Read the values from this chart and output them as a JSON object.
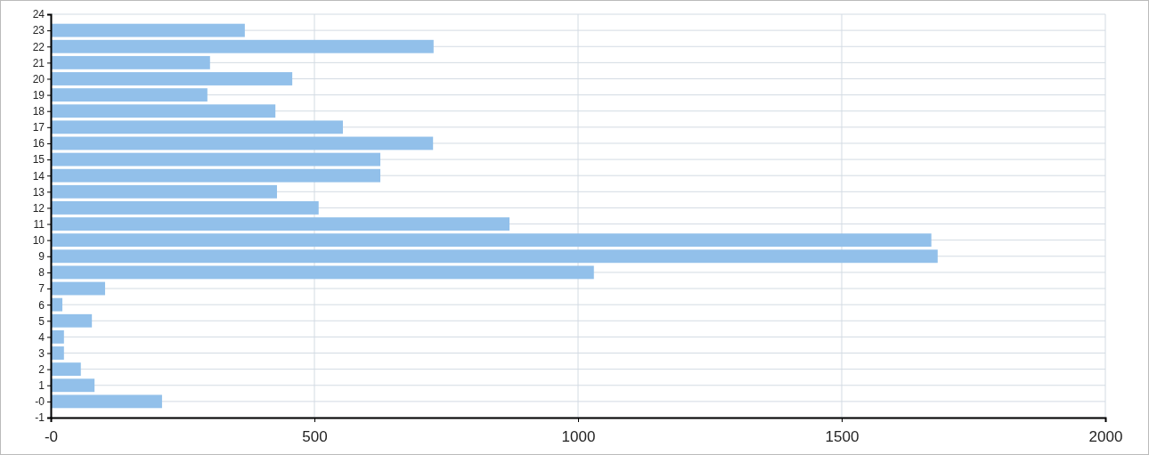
{
  "chart_data": {
    "type": "bar",
    "orientation": "horizontal",
    "categories": [
      "24",
      "23",
      "22",
      "21",
      "20",
      "19",
      "18",
      "17",
      "16",
      "15",
      "14",
      "13",
      "12",
      "11",
      "10",
      "9",
      "8",
      "7",
      "6",
      "5",
      "4",
      "3",
      "2",
      "1",
      "-0",
      "-1"
    ],
    "values": [
      null,
      368,
      726,
      302,
      458,
      297,
      426,
      554,
      725,
      625,
      625,
      429,
      508,
      870,
      1670,
      1682,
      1030,
      103,
      22,
      78,
      25,
      25,
      57,
      83,
      211,
      null
    ],
    "color": "#92c0ea",
    "xlim": [
      0,
      2000
    ],
    "xticks": [
      {
        "value": 0,
        "label": "-0"
      },
      500,
      1000,
      1500,
      2000
    ],
    "grid": true
  }
}
